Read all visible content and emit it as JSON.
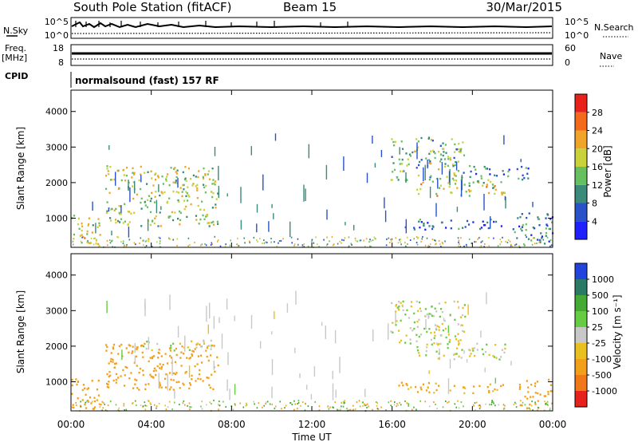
{
  "header": {
    "station": "South Pole Station (fitACF)",
    "beam": "Beam 15",
    "date": "30/Mar/2015"
  },
  "top_panels": {
    "nsky_label": "N.Sky",
    "nsky_ticks": [
      "10^5",
      "10^0"
    ],
    "nsearch_label": "N.Search",
    "nsearch_ticks": [
      "10^5",
      "10^0"
    ],
    "freq_label": "Freq.",
    "freq_unit": "[MHz]",
    "freq_ticks": [
      "18",
      "8"
    ],
    "nave_label": "Nave",
    "nave_ticks": [
      "60",
      "0"
    ],
    "cpid_label": "CPID",
    "cpid_text": "normalsound (fast) 157 RF"
  },
  "colors": {
    "power_scale": [
      "#2020ff",
      "#2a52c8",
      "#3b8a7a",
      "#67c060",
      "#c9d23a",
      "#f0a52a",
      "#f26a1a",
      "#e8221a"
    ],
    "velocity_scale": [
      "#2244dd",
      "#2a7a66",
      "#44aa33",
      "#66cc44",
      "#c8c8c8",
      "#e8c020",
      "#f2a01a",
      "#f07818",
      "#e8221a"
    ]
  },
  "chart_data": [
    {
      "type": "heatmap",
      "panel": "power",
      "xlabel": "Time UT",
      "ylabel": "Slant Range [km]",
      "colorbar_label": "Power [dB]",
      "colorbar_ticks": [
        "28",
        "24",
        "20",
        "16",
        "12",
        "8",
        "4"
      ],
      "colorbar_range": [
        0,
        32
      ],
      "x_ticks": [
        "00:00",
        "04:00",
        "08:00",
        "12:00",
        "16:00",
        "20:00",
        "00:00"
      ],
      "xlim_hours": [
        0,
        24
      ],
      "y_ticks": [
        "4000",
        "3000",
        "2000",
        "1000"
      ],
      "ylim_km": [
        180,
        4600
      ],
      "echo_regions": [
        {
          "t0": 0.0,
          "t1": 1.5,
          "r0": 200,
          "r1": 1100,
          "power": 18
        },
        {
          "t0": 1.7,
          "t1": 7.3,
          "r0": 800,
          "r1": 2500,
          "power": 17
        },
        {
          "t0": 15.9,
          "t1": 19.6,
          "r0": 2050,
          "r1": 3300,
          "power": 14
        },
        {
          "t0": 17.2,
          "t1": 21.6,
          "r0": 1650,
          "r1": 2100,
          "power": 18
        },
        {
          "t0": 19.8,
          "t1": 22.8,
          "r0": 2100,
          "r1": 2500,
          "power": 8
        },
        {
          "t0": 16.5,
          "t1": 21.5,
          "r0": 700,
          "r1": 1000,
          "power": 8
        },
        {
          "t0": 22.0,
          "t1": 24.0,
          "r0": 250,
          "r1": 1200,
          "power": 8
        }
      ]
    },
    {
      "type": "heatmap",
      "panel": "velocity",
      "xlabel": "Time UT",
      "ylabel": "Slant Range [km]",
      "colorbar_label": "Velocity [m s⁻¹]",
      "colorbar_ticks": [
        "1000",
        "500",
        "100",
        "25",
        "-25",
        "-100",
        "-500",
        "-1000"
      ],
      "x_ticks": [
        "00:00",
        "04:00",
        "08:00",
        "12:00",
        "16:00",
        "20:00",
        "00:00"
      ],
      "xlim_hours": [
        0,
        24
      ],
      "y_ticks": [
        "4000",
        "3000",
        "2000",
        "1000"
      ],
      "ylim_km": [
        180,
        4600
      ],
      "echo_regions": [
        {
          "t0": 0.0,
          "t1": 1.5,
          "r0": 200,
          "r1": 1100,
          "velocity": -200
        },
        {
          "t0": 1.7,
          "t1": 7.3,
          "r0": 800,
          "r1": 2100,
          "velocity": -250
        },
        {
          "t0": 3.5,
          "t1": 7.0,
          "r0": 1900,
          "r1": 2200,
          "velocity": 0
        },
        {
          "t0": 15.9,
          "t1": 19.6,
          "r0": 2050,
          "r1": 3300,
          "velocity": 0
        },
        {
          "t0": 17.2,
          "t1": 21.6,
          "r0": 1650,
          "r1": 2100,
          "velocity": 0
        },
        {
          "t0": 16.3,
          "t1": 21.5,
          "r0": 700,
          "r1": 1000,
          "velocity": -150
        },
        {
          "t0": 22.3,
          "t1": 24.0,
          "r0": 250,
          "r1": 1100,
          "velocity": -200
        }
      ]
    }
  ]
}
